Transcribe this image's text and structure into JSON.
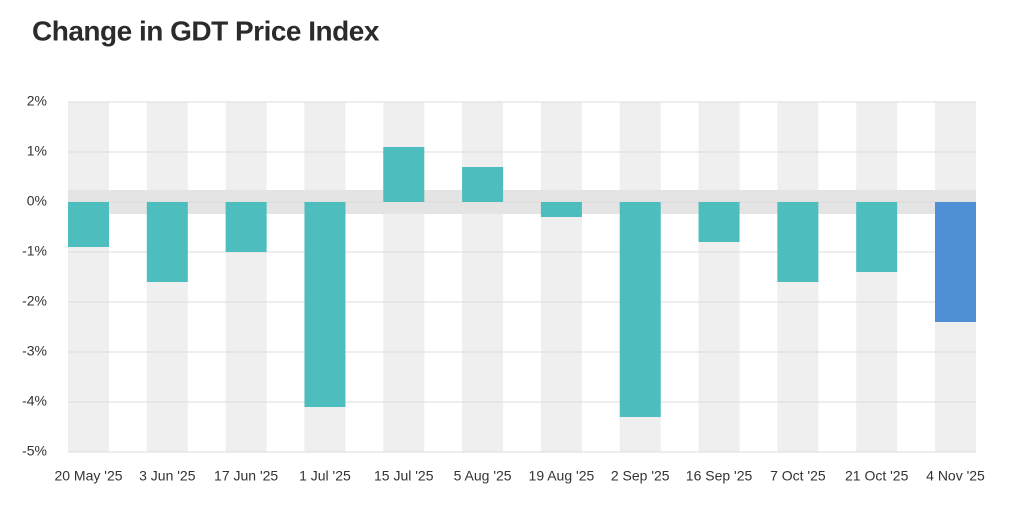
{
  "chart_data": {
    "type": "bar",
    "title": "Change in GDT Price Index",
    "categories": [
      "20 May '25",
      "3 Jun '25",
      "17 Jun '25",
      "1 Jul '25",
      "15 Jul '25",
      "5 Aug '25",
      "19 Aug '25",
      "2 Sep '25",
      "16 Sep '25",
      "7 Oct '25",
      "21 Oct '25",
      "4 Nov '25"
    ],
    "values": [
      -0.9,
      -1.6,
      -1.0,
      -4.1,
      1.1,
      0.7,
      -0.3,
      -4.3,
      -0.8,
      -1.6,
      -1.4,
      -2.4
    ],
    "colors": [
      "#4dbdbd",
      "#4dbdbd",
      "#4dbdbd",
      "#4dbdbd",
      "#4dbdbd",
      "#4dbdbd",
      "#4dbdbd",
      "#4dbdbd",
      "#4dbdbd",
      "#4dbdbd",
      "#4dbdbd",
      "#4f8fd6"
    ],
    "ylim": [
      -5,
      2
    ],
    "yticks": [
      {
        "value": 2,
        "label": "2%"
      },
      {
        "value": 1,
        "label": "1%"
      },
      {
        "value": 0,
        "label": "0%"
      },
      {
        "value": -1,
        "label": "-1%"
      },
      {
        "value": -2,
        "label": "-2%"
      },
      {
        "value": -3,
        "label": "-3%"
      },
      {
        "value": -4,
        "label": "-4%"
      },
      {
        "value": -5,
        "label": "-5%"
      }
    ],
    "grid": true
  }
}
